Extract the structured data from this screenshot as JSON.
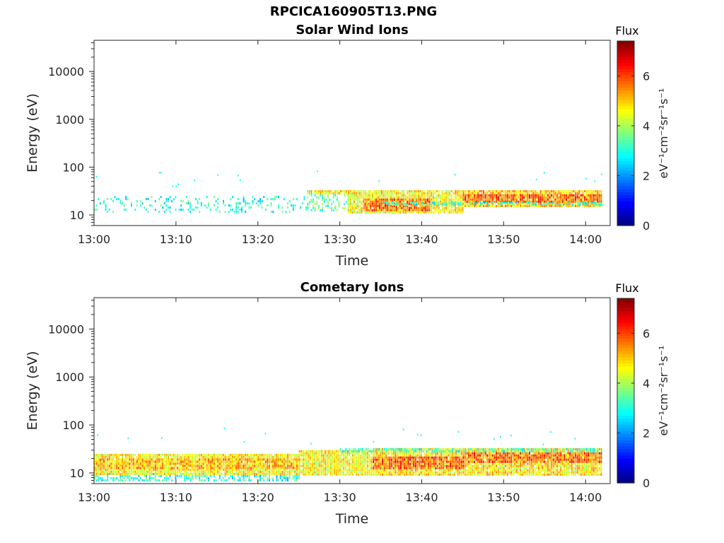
{
  "figure_title": "RPCICA160905T13.PNG",
  "chart_data": [
    {
      "type": "heatmap",
      "title": "Solar Wind Ions",
      "xlabel": "Time",
      "ylabel": "Energy (eV)",
      "x_ticks": [
        "13:00",
        "13:10",
        "13:20",
        "13:30",
        "13:40",
        "13:50",
        "14:00"
      ],
      "x_range": [
        "13:00",
        "14:03"
      ],
      "y_scale": "log",
      "y_ticks": [
        10,
        100,
        1000,
        10000
      ],
      "y_range": [
        6,
        45000
      ],
      "data_end": "14:02",
      "colorbar": {
        "title": "Flux",
        "label": "eV⁻¹cm⁻²sr⁻¹s⁻¹",
        "range": [
          0,
          7.4
        ],
        "ticks": [
          0,
          2,
          4,
          6
        ],
        "colormap": "jet"
      },
      "bands": [
        {
          "t_start": "13:00",
          "t_end": "13:26",
          "e_low": 12,
          "e_high": 25,
          "flux": 3.0,
          "density": 0.22
        },
        {
          "t_start": "13:26",
          "t_end": "13:31",
          "e_low": 12,
          "e_high": 33,
          "flux": 3.4,
          "density": 0.35
        },
        {
          "t_start": "13:26",
          "t_end": "13:31",
          "e_low": 28,
          "e_high": 33,
          "flux": 4.8,
          "density": 0.8
        },
        {
          "t_start": "13:31",
          "t_end": "13:45",
          "e_low": 11,
          "e_high": 33,
          "flux": 4.6,
          "density": 0.9
        },
        {
          "t_start": "13:33",
          "t_end": "13:41",
          "e_low": 13,
          "e_high": 22,
          "flux": 5.8,
          "density": 0.8
        },
        {
          "t_start": "13:45",
          "t_end": "14:02",
          "e_low": 15,
          "e_high": 33,
          "flux": 5.0,
          "density": 0.95
        },
        {
          "t_start": "13:45",
          "t_end": "14:02",
          "e_low": 19,
          "e_high": 27,
          "flux": 5.9,
          "density": 0.8
        },
        {
          "t_start": "13:35",
          "t_end": "14:02",
          "e_low": 16,
          "e_high": 19,
          "flux": 3.1,
          "density": 0.5
        }
      ]
    },
    {
      "type": "heatmap",
      "title": "Cometary Ions",
      "xlabel": "Time",
      "ylabel": "Energy (eV)",
      "x_ticks": [
        "13:00",
        "13:10",
        "13:20",
        "13:30",
        "13:40",
        "13:50",
        "14:00"
      ],
      "x_range": [
        "13:00",
        "14:03"
      ],
      "y_scale": "log",
      "y_ticks": [
        10,
        100,
        1000,
        10000
      ],
      "y_range": [
        6,
        45000
      ],
      "data_end": "14:02",
      "colorbar": {
        "title": "Flux",
        "label": "eV⁻¹cm⁻²sr⁻¹s⁻¹",
        "range": [
          0,
          7.4
        ],
        "ticks": [
          0,
          2,
          4,
          6
        ],
        "colormap": "jet"
      },
      "bands": [
        {
          "t_start": "13:00",
          "t_end": "13:25",
          "e_low": 7,
          "e_high": 10,
          "flux": 3.0,
          "density": 0.5
        },
        {
          "t_start": "13:00",
          "t_end": "13:25",
          "e_low": 10,
          "e_high": 25,
          "flux": 4.7,
          "density": 0.95
        },
        {
          "t_start": "13:00",
          "t_end": "13:25",
          "e_low": 13,
          "e_high": 20,
          "flux": 5.2,
          "density": 0.7
        },
        {
          "t_start": "13:25",
          "t_end": "13:34",
          "e_low": 9,
          "e_high": 30,
          "flux": 4.6,
          "density": 0.95
        },
        {
          "t_start": "13:34",
          "t_end": "14:02",
          "e_low": 9,
          "e_high": 33,
          "flux": 4.8,
          "density": 0.95
        },
        {
          "t_start": "13:34",
          "t_end": "13:45",
          "e_low": 13,
          "e_high": 22,
          "flux": 5.9,
          "density": 0.85
        },
        {
          "t_start": "13:45",
          "t_end": "14:02",
          "e_low": 17,
          "e_high": 27,
          "flux": 5.8,
          "density": 0.8
        },
        {
          "t_start": "13:30",
          "t_end": "14:02",
          "e_low": 28,
          "e_high": 33,
          "flux": 3.2,
          "density": 0.6
        }
      ]
    }
  ]
}
